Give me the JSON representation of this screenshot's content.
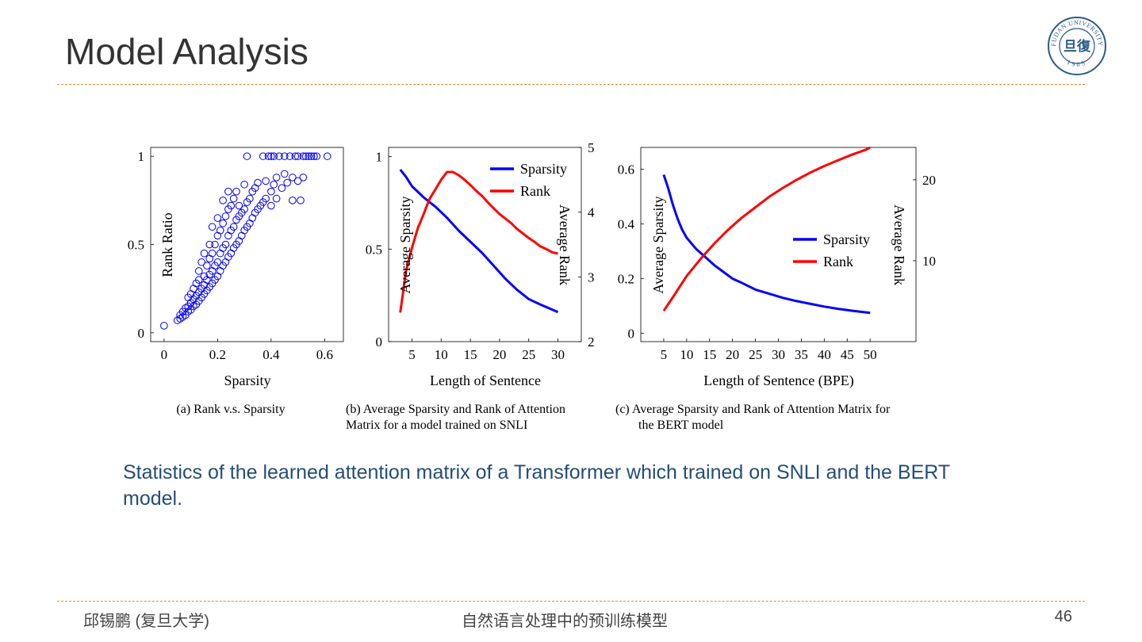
{
  "slide": {
    "title": "Model Analysis",
    "caption": "Statistics of the learned attention matrix of a Transformer which trained on SNLI and the BERT model.",
    "footer_left": "邱锡鹏 (复旦大学)",
    "footer_center": "自然语言处理中的预训练模型",
    "page_number": "46",
    "logo_text": "FUDAN UNIVERSITY",
    "logo_year": "1905",
    "logo_glyph": "旦復"
  },
  "colors": {
    "blue": "#0000ff",
    "red": "#ff0000",
    "title": "#333333",
    "caption": "#244e78",
    "rule": "#e08a2e"
  },
  "chart_data": [
    {
      "type": "scatter",
      "xlabel": "Sparsity",
      "ylabel": "Rank Ratio",
      "xlim": [
        -0.05,
        0.67
      ],
      "ylim": [
        -0.05,
        1.05
      ],
      "xticks": [
        "0",
        "0.2",
        "0.4",
        "0.6"
      ],
      "yticks": [
        "0",
        "0.5",
        "1"
      ],
      "subcaption": [
        "(a) Rank v.s. Sparsity"
      ],
      "points": [
        [
          0.0,
          0.04
        ],
        [
          0.05,
          0.07
        ],
        [
          0.06,
          0.08
        ],
        [
          0.06,
          0.1
        ],
        [
          0.07,
          0.09
        ],
        [
          0.07,
          0.12
        ],
        [
          0.08,
          0.1
        ],
        [
          0.08,
          0.14
        ],
        [
          0.09,
          0.12
        ],
        [
          0.09,
          0.15
        ],
        [
          0.09,
          0.2
        ],
        [
          0.1,
          0.13
        ],
        [
          0.1,
          0.17
        ],
        [
          0.1,
          0.22
        ],
        [
          0.11,
          0.15
        ],
        [
          0.11,
          0.19
        ],
        [
          0.11,
          0.25
        ],
        [
          0.12,
          0.16
        ],
        [
          0.12,
          0.21
        ],
        [
          0.12,
          0.28
        ],
        [
          0.13,
          0.18
        ],
        [
          0.13,
          0.23
        ],
        [
          0.13,
          0.3
        ],
        [
          0.13,
          0.35
        ],
        [
          0.14,
          0.2
        ],
        [
          0.14,
          0.25
        ],
        [
          0.14,
          0.4
        ],
        [
          0.15,
          0.22
        ],
        [
          0.15,
          0.27
        ],
        [
          0.15,
          0.32
        ],
        [
          0.15,
          0.45
        ],
        [
          0.16,
          0.24
        ],
        [
          0.16,
          0.3
        ],
        [
          0.16,
          0.38
        ],
        [
          0.17,
          0.26
        ],
        [
          0.17,
          0.33
        ],
        [
          0.17,
          0.42
        ],
        [
          0.17,
          0.5
        ],
        [
          0.18,
          0.28
        ],
        [
          0.18,
          0.35
        ],
        [
          0.18,
          0.45
        ],
        [
          0.18,
          0.6
        ],
        [
          0.19,
          0.3
        ],
        [
          0.19,
          0.38
        ],
        [
          0.19,
          0.5
        ],
        [
          0.2,
          0.32
        ],
        [
          0.2,
          0.4
        ],
        [
          0.2,
          0.55
        ],
        [
          0.2,
          0.65
        ],
        [
          0.21,
          0.35
        ],
        [
          0.21,
          0.45
        ],
        [
          0.21,
          0.58
        ],
        [
          0.22,
          0.38
        ],
        [
          0.22,
          0.48
        ],
        [
          0.22,
          0.62
        ],
        [
          0.22,
          0.75
        ],
        [
          0.23,
          0.4
        ],
        [
          0.23,
          0.5
        ],
        [
          0.23,
          0.66
        ],
        [
          0.24,
          0.43
        ],
        [
          0.24,
          0.55
        ],
        [
          0.24,
          0.7
        ],
        [
          0.24,
          0.8
        ],
        [
          0.25,
          0.45
        ],
        [
          0.25,
          0.58
        ],
        [
          0.25,
          0.72
        ],
        [
          0.26,
          0.48
        ],
        [
          0.26,
          0.6
        ],
        [
          0.26,
          0.76
        ],
        [
          0.27,
          0.5
        ],
        [
          0.27,
          0.64
        ],
        [
          0.27,
          0.8
        ],
        [
          0.28,
          0.52
        ],
        [
          0.28,
          0.66
        ],
        [
          0.28,
          0.72
        ],
        [
          0.29,
          0.55
        ],
        [
          0.29,
          0.68
        ],
        [
          0.3,
          0.58
        ],
        [
          0.3,
          0.7
        ],
        [
          0.3,
          0.84
        ],
        [
          0.31,
          0.6
        ],
        [
          0.31,
          0.74
        ],
        [
          0.31,
          1.0
        ],
        [
          0.32,
          0.62
        ],
        [
          0.32,
          0.76
        ],
        [
          0.33,
          0.65
        ],
        [
          0.33,
          0.8
        ],
        [
          0.34,
          0.68
        ],
        [
          0.34,
          0.82
        ],
        [
          0.35,
          0.7
        ],
        [
          0.35,
          0.85
        ],
        [
          0.36,
          0.72
        ],
        [
          0.37,
          0.74
        ],
        [
          0.37,
          1.0
        ],
        [
          0.38,
          0.76
        ],
        [
          0.38,
          0.86
        ],
        [
          0.39,
          1.0
        ],
        [
          0.4,
          0.72
        ],
        [
          0.4,
          0.8
        ],
        [
          0.4,
          1.0
        ],
        [
          0.41,
          0.84
        ],
        [
          0.41,
          1.0
        ],
        [
          0.42,
          0.76
        ],
        [
          0.42,
          0.88
        ],
        [
          0.43,
          1.0
        ],
        [
          0.44,
          0.82
        ],
        [
          0.45,
          0.9
        ],
        [
          0.45,
          1.0
        ],
        [
          0.46,
          0.85
        ],
        [
          0.47,
          1.0
        ],
        [
          0.48,
          0.75
        ],
        [
          0.48,
          0.88
        ],
        [
          0.49,
          1.0
        ],
        [
          0.5,
          0.86
        ],
        [
          0.5,
          1.0
        ],
        [
          0.51,
          0.75
        ],
        [
          0.52,
          0.88
        ],
        [
          0.52,
          1.0
        ],
        [
          0.53,
          1.0
        ],
        [
          0.54,
          1.0
        ],
        [
          0.55,
          1.0
        ],
        [
          0.56,
          1.0
        ],
        [
          0.57,
          1.0
        ],
        [
          0.61,
          1.0
        ]
      ]
    },
    {
      "type": "line",
      "xlabel": "Length of Sentence",
      "ylabel": "Average Sparsity",
      "y2label": "Average Rank",
      "xlim": [
        1,
        34
      ],
      "ylim": [
        0,
        1.05
      ],
      "y2lim": [
        2,
        5
      ],
      "xticks": [
        5,
        10,
        15,
        20,
        25,
        30
      ],
      "yticks": [
        "0",
        "0.5",
        "1"
      ],
      "y2ticks": [
        "2",
        "3",
        "4",
        "5"
      ],
      "legend_position": "top-right",
      "subcaption": [
        "(b) Average Sparsity and Rank of Attention",
        "Matrix for a model trained on SNLI"
      ],
      "series": [
        {
          "name": "Sparsity",
          "axis": "left",
          "color": "#0000ff",
          "x": [
            3,
            4,
            5,
            7,
            9,
            11,
            13,
            15,
            17,
            19,
            21,
            23,
            25,
            27,
            30
          ],
          "y": [
            0.93,
            0.89,
            0.84,
            0.78,
            0.73,
            0.67,
            0.6,
            0.54,
            0.48,
            0.41,
            0.34,
            0.28,
            0.23,
            0.2,
            0.16
          ]
        },
        {
          "name": "Rank",
          "axis": "right",
          "color": "#ff0000",
          "x": [
            3,
            4,
            5,
            6,
            7,
            8,
            9,
            10,
            11,
            12,
            13,
            14,
            15,
            16,
            17,
            18,
            19,
            20,
            21,
            22,
            23,
            24,
            25,
            26,
            27,
            28,
            29,
            30
          ],
          "y": [
            2.45,
            3.1,
            3.45,
            3.75,
            3.97,
            4.2,
            4.35,
            4.5,
            4.62,
            4.62,
            4.57,
            4.5,
            4.42,
            4.33,
            4.25,
            4.15,
            4.06,
            3.97,
            3.9,
            3.83,
            3.74,
            3.67,
            3.6,
            3.54,
            3.47,
            3.43,
            3.38,
            3.36
          ]
        }
      ]
    },
    {
      "type": "line",
      "xlabel": "Length of Sentence (BPE)",
      "ylabel": "Average Sparsity",
      "y2label": "Average Rank",
      "xlim": [
        0,
        60
      ],
      "ylim": [
        -0.03,
        0.68
      ],
      "y2lim": [
        0,
        24
      ],
      "xticks": [
        5,
        10,
        15,
        20,
        25,
        30,
        35,
        40,
        45,
        50
      ],
      "yticks": [
        "0",
        "0.2",
        "0.4",
        "0.6"
      ],
      "y2ticks": [
        "10",
        "20"
      ],
      "legend_position": "center-right",
      "subcaption": [
        "(c) Average Sparsity and Rank of Attention Matrix for",
        "the BERT model"
      ],
      "series": [
        {
          "name": "Sparsity",
          "axis": "left",
          "color": "#0000ff",
          "x": [
            5,
            6,
            7,
            8,
            9,
            10,
            12,
            14,
            16,
            18,
            20,
            22,
            25,
            28,
            31,
            34,
            37,
            40,
            43,
            46,
            50
          ],
          "y": [
            0.58,
            0.53,
            0.47,
            0.42,
            0.38,
            0.35,
            0.31,
            0.28,
            0.25,
            0.225,
            0.2,
            0.185,
            0.16,
            0.145,
            0.13,
            0.118,
            0.108,
            0.098,
            0.09,
            0.083,
            0.075
          ]
        },
        {
          "name": "Rank",
          "axis": "right",
          "color": "#ff0000",
          "x": [
            5,
            7,
            10,
            13,
            16,
            19,
            22,
            25,
            28,
            31,
            34,
            37,
            40,
            43,
            46,
            49,
            50
          ],
          "y": [
            3.8,
            5.5,
            8.1,
            10.2,
            12.1,
            13.8,
            15.3,
            16.6,
            17.9,
            19.0,
            20.0,
            20.9,
            21.7,
            22.4,
            23.1,
            23.7,
            24.0
          ]
        }
      ]
    }
  ]
}
